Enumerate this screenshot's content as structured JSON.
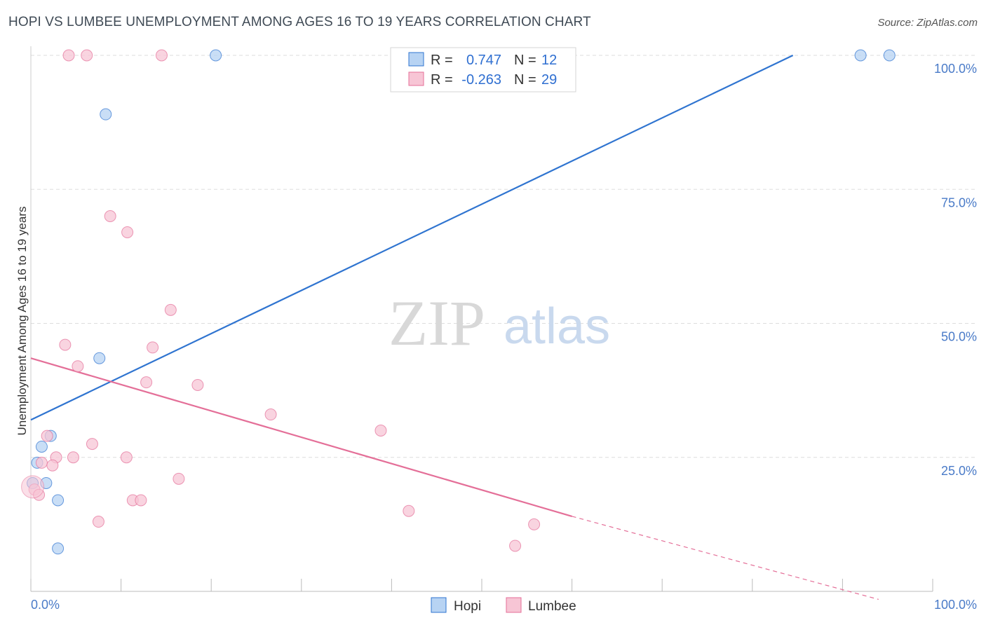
{
  "title": "HOPI VS LUMBEE UNEMPLOYMENT AMONG AGES 16 TO 19 YEARS CORRELATION CHART",
  "source": "Source: ZipAtlas.com",
  "watermark": {
    "zip": "ZIP",
    "atlas": "atlas"
  },
  "colors": {
    "hopi": "#2f74d0",
    "hopi_fill": "#b7d3f3",
    "lumbee": "#e46f98",
    "lumbee_fill": "#f7c5d5",
    "tick": "#4a7bc8",
    "grid": "#dddddd"
  },
  "legend": {
    "rows": [
      {
        "series": "hopi",
        "r_label": "R =",
        "r_value": "0.747",
        "n_label": "N =",
        "n_value": "12"
      },
      {
        "series": "lumbee",
        "r_label": "R =",
        "r_value": "-0.263",
        "n_label": "N =",
        "n_value": "29"
      }
    ]
  },
  "chart_data": {
    "type": "scatter",
    "title": "HOPI VS LUMBEE UNEMPLOYMENT AMONG AGES 16 TO 19 YEARS CORRELATION CHART",
    "xlabel": "",
    "ylabel": "Unemployment Among Ages 16 to 19 years",
    "xlim": [
      0,
      100
    ],
    "ylim": [
      0,
      100
    ],
    "x_tick_labels": [
      "0.0%",
      "100.0%"
    ],
    "y_ticks": [
      {
        "value": 25,
        "label": "25.0%"
      },
      {
        "value": 50,
        "label": "50.0%"
      },
      {
        "value": 75,
        "label": "75.0%"
      },
      {
        "value": 100,
        "label": "100.0%"
      }
    ],
    "series": [
      {
        "name": "Hopi",
        "key": "hopi",
        "points": [
          [
            20.5,
            100
          ],
          [
            92,
            100
          ],
          [
            95.2,
            100
          ],
          [
            8.3,
            89
          ],
          [
            7.6,
            43.5
          ],
          [
            2.2,
            29
          ],
          [
            1.2,
            27
          ],
          [
            0.7,
            24
          ],
          [
            1.7,
            20.2
          ],
          [
            3.0,
            17
          ],
          [
            0.2,
            20.2
          ],
          [
            3.0,
            8
          ]
        ],
        "trend": {
          "x0": 0,
          "y0": 32,
          "x1": 84.5,
          "y1": 100,
          "dashed_to": null
        }
      },
      {
        "name": "Lumbee",
        "key": "lumbee",
        "points": [
          [
            4.2,
            100
          ],
          [
            6.2,
            100
          ],
          [
            14.5,
            100
          ],
          [
            8.8,
            70
          ],
          [
            10.7,
            67
          ],
          [
            15.5,
            52.5
          ],
          [
            3.8,
            46
          ],
          [
            13.5,
            45.5
          ],
          [
            5.2,
            42
          ],
          [
            12.8,
            39
          ],
          [
            18.5,
            38.5
          ],
          [
            26.6,
            33
          ],
          [
            38.8,
            30
          ],
          [
            1.8,
            29
          ],
          [
            6.8,
            27.5
          ],
          [
            10.6,
            25
          ],
          [
            2.8,
            25
          ],
          [
            4.7,
            25
          ],
          [
            1.2,
            24
          ],
          [
            2.4,
            23.5
          ],
          [
            16.4,
            21
          ],
          [
            0.4,
            19
          ],
          [
            0.9,
            18
          ],
          [
            11.3,
            17
          ],
          [
            12.2,
            17
          ],
          [
            41.9,
            15
          ],
          [
            7.5,
            13
          ],
          [
            55.8,
            12.5
          ],
          [
            53.7,
            8.5
          ]
        ],
        "trend": {
          "x0": 0,
          "y0": 43.5,
          "x1": 60,
          "y1": 14,
          "dashed_to": {
            "x": 94,
            "y": -1.5
          }
        }
      }
    ],
    "bottom_legend": [
      "Hopi",
      "Lumbee"
    ]
  }
}
